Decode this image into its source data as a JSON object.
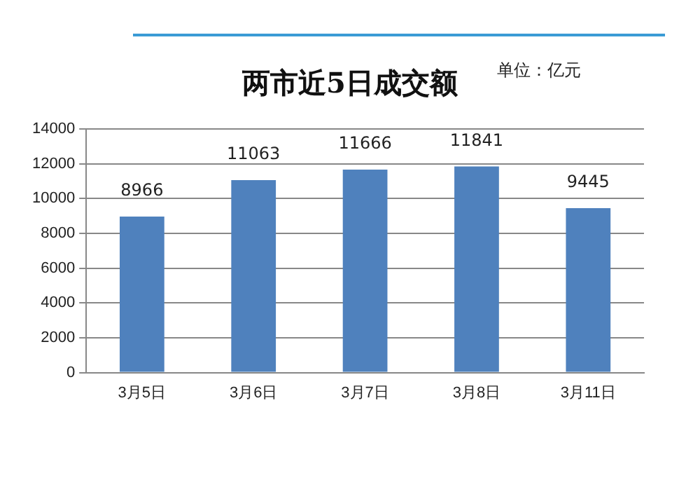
{
  "chart_data": {
    "type": "bar",
    "title": "两市近5日成交额",
    "annotations": [
      "单位：亿元"
    ],
    "categories": [
      "3月5日",
      "3月6日",
      "3月7日",
      "3月8日",
      "3月11日"
    ],
    "values": [
      8966,
      11063,
      11666,
      11841,
      9445
    ],
    "color": "#4f81bd",
    "ylim": [
      0,
      14000
    ],
    "yticks": [
      0,
      2000,
      4000,
      6000,
      8000,
      10000,
      12000,
      14000
    ],
    "grid": "y",
    "data_labels": true
  }
}
